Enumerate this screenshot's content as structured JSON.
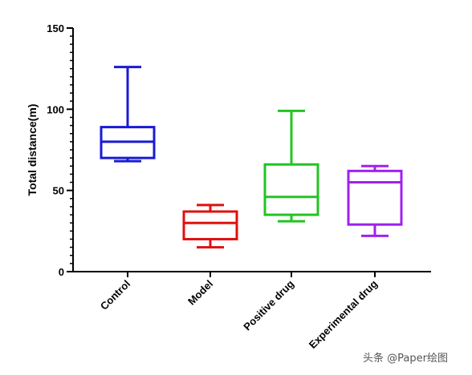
{
  "watermark": "头条 @Paper绘图",
  "chart_data": {
    "type": "box",
    "title": "",
    "xlabel": "",
    "ylabel": "Total distance(m)",
    "ylim": [
      0,
      150
    ],
    "yticks": [
      0,
      50,
      100,
      150
    ],
    "minor_tick_step": 5,
    "grid": false,
    "legend": "none",
    "categories": [
      "Control",
      "Model",
      "Positive drug",
      "Experimental drug"
    ],
    "series": [
      {
        "category": "Control",
        "color": "#1a1ad6",
        "min": 68,
        "q1": 70,
        "median": 80,
        "q3": 89,
        "max": 126
      },
      {
        "category": "Model",
        "color": "#e01010",
        "min": 15,
        "q1": 20,
        "median": 30,
        "q3": 37,
        "max": 41
      },
      {
        "category": "Positive drug",
        "color": "#22c422",
        "min": 31,
        "q1": 35,
        "median": 46,
        "q3": 66,
        "max": 99
      },
      {
        "category": "Experimental drug",
        "color": "#a020f0",
        "min": 22,
        "q1": 29,
        "median": 55,
        "q3": 62,
        "max": 65
      }
    ]
  }
}
